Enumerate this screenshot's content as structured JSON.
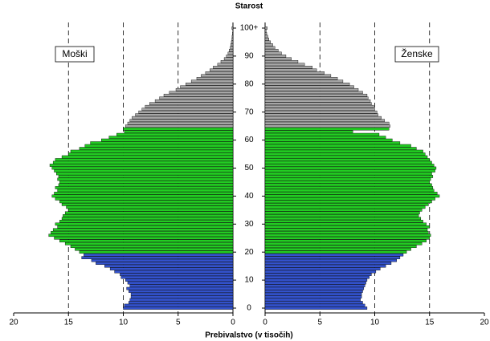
{
  "chart_data": {
    "type": "pyramid",
    "title": "Starost",
    "x_label": "Prebivalstvo (v tisočih)",
    "categories": [
      "0",
      null,
      null,
      null,
      null,
      null,
      null,
      null,
      null,
      null,
      "10",
      null,
      null,
      null,
      null,
      null,
      null,
      null,
      null,
      null,
      "20",
      null,
      null,
      null,
      null,
      null,
      null,
      null,
      null,
      null,
      "30",
      null,
      null,
      null,
      null,
      null,
      null,
      null,
      null,
      null,
      "40",
      null,
      null,
      null,
      null,
      null,
      null,
      null,
      null,
      null,
      "50",
      null,
      null,
      null,
      null,
      null,
      null,
      null,
      null,
      null,
      "60",
      null,
      null,
      null,
      null,
      null,
      null,
      null,
      null,
      null,
      "70",
      null,
      null,
      null,
      null,
      null,
      null,
      null,
      null,
      null,
      "80",
      null,
      null,
      null,
      null,
      null,
      null,
      null,
      null,
      null,
      "90",
      null,
      null,
      null,
      null,
      null,
      null,
      null,
      null,
      null,
      "100+"
    ],
    "series": [
      {
        "name": "Moški",
        "side": "left",
        "values": [
          10.0,
          9.9,
          9.5,
          9.4,
          9.3,
          9.3,
          9.5,
          9.7,
          9.4,
          9.6,
          9.8,
          10.2,
          10.3,
          10.8,
          11.2,
          11.7,
          12.5,
          12.9,
          13.8,
          13.6,
          14.0,
          14.4,
          14.8,
          15.3,
          15.8,
          16.3,
          16.8,
          16.6,
          16.4,
          16.0,
          16.2,
          15.8,
          15.6,
          15.5,
          15.3,
          15.0,
          15.2,
          15.6,
          15.8,
          16.2,
          16.5,
          16.3,
          16.0,
          16.2,
          15.9,
          15.8,
          16.0,
          15.9,
          16.1,
          16.3,
          16.5,
          16.7,
          16.4,
          16.2,
          15.6,
          15.0,
          14.8,
          14.0,
          13.5,
          13.0,
          12.0,
          11.3,
          10.6,
          9.9,
          10.0,
          9.8,
          9.6,
          9.4,
          9.2,
          8.9,
          8.6,
          8.3,
          8.0,
          7.6,
          7.1,
          6.7,
          6.3,
          5.8,
          5.2,
          4.8,
          4.3,
          3.8,
          3.3,
          2.9,
          2.5,
          2.1,
          1.8,
          1.4,
          1.1,
          0.8,
          0.6,
          0.45,
          0.35,
          0.25,
          0.2,
          0.15,
          0.1,
          0.08,
          0.05,
          0.03,
          0.1
        ]
      },
      {
        "name": "Ženske",
        "side": "right",
        "values": [
          9.3,
          9.1,
          8.9,
          8.7,
          8.8,
          8.8,
          8.9,
          9.0,
          9.1,
          9.2,
          9.3,
          9.5,
          9.7,
          10.1,
          10.5,
          11.0,
          11.5,
          12.0,
          12.3,
          12.6,
          12.9,
          13.3,
          13.8,
          14.3,
          14.7,
          15.0,
          15.1,
          14.9,
          14.8,
          15.0,
          14.7,
          14.4,
          14.2,
          14.0,
          14.1,
          14.3,
          14.6,
          14.9,
          15.2,
          15.5,
          15.9,
          15.7,
          15.4,
          15.3,
          15.2,
          15.0,
          15.1,
          15.3,
          15.2,
          15.5,
          15.6,
          15.4,
          15.2,
          15.0,
          14.8,
          14.6,
          14.4,
          13.8,
          13.3,
          12.3,
          11.6,
          11.0,
          10.4,
          8.0,
          11.3,
          11.4,
          11.3,
          10.9,
          10.6,
          10.3,
          10.2,
          10.0,
          9.9,
          9.7,
          9.6,
          9.4,
          9.3,
          8.9,
          8.5,
          8.1,
          7.7,
          7.1,
          6.6,
          6.0,
          5.4,
          4.7,
          4.3,
          3.6,
          3.0,
          2.4,
          1.9,
          1.5,
          1.2,
          0.9,
          0.7,
          0.5,
          0.35,
          0.25,
          0.15,
          0.1,
          0.2
        ]
      }
    ],
    "age_colors": [
      {
        "from": 0,
        "color": "#3352cc"
      },
      {
        "from": 20,
        "color": "#22cc22"
      },
      {
        "from": 65,
        "color": "#a6a6a6"
      }
    ],
    "xlim": [
      0,
      20
    ],
    "xticks": [
      0,
      5,
      10,
      15,
      20
    ],
    "grid": true
  }
}
